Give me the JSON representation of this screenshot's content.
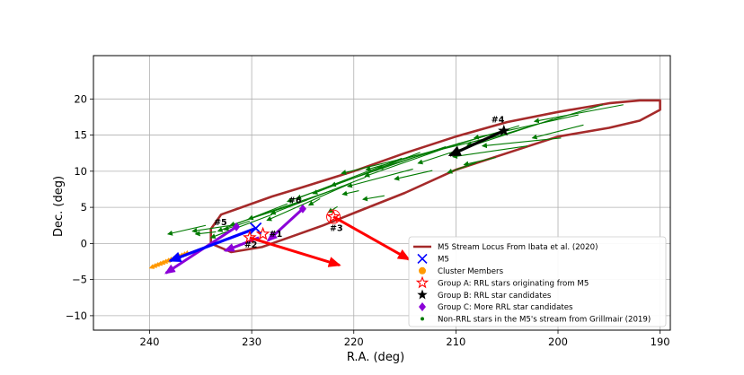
{
  "chart_data": {
    "type": "scatter",
    "xlabel": "R.A. (deg)",
    "ylabel": "Dec. (deg)",
    "xlim": [
      245.5,
      189
    ],
    "ylim": [
      -12,
      26
    ],
    "x_ticks": [
      240,
      230,
      220,
      210,
      200,
      190
    ],
    "y_ticks": [
      -10,
      -5,
      0,
      5,
      10,
      15,
      20
    ],
    "grid": true,
    "legend_position": "lower-right",
    "legend": [
      {
        "label": "M5 Stream Locus From Ibata et al. (2020)",
        "marker": "line",
        "color": "#a52a2a"
      },
      {
        "label": "M5",
        "marker": "x",
        "color": "#0000ff"
      },
      {
        "label": "Cluster Members",
        "marker": "circle",
        "color": "#ff9900"
      },
      {
        "label": "Group A: RRL stars originating from M5",
        "marker": "star-open",
        "color": "#ff0000"
      },
      {
        "label": "Group B: RRL star candidates",
        "marker": "star",
        "color": "#000000"
      },
      {
        "label": "Group C: More RRL star candidates",
        "marker": "diamond",
        "color": "#8b00d8"
      },
      {
        "label": "Non-RRL stars in the M5's stream from Grillmair (2019)",
        "marker": "dot",
        "color": "#007a00"
      }
    ],
    "locus_polygon": [
      [
        234,
        2
      ],
      [
        233,
        4
      ],
      [
        231,
        5
      ],
      [
        228,
        6.5
      ],
      [
        225,
        7.8
      ],
      [
        220,
        10
      ],
      [
        215,
        12.5
      ],
      [
        210,
        14.8
      ],
      [
        205,
        16.8
      ],
      [
        200,
        18.2
      ],
      [
        195,
        19.4
      ],
      [
        192,
        19.8
      ],
      [
        190,
        19.8
      ],
      [
        190,
        18.5
      ],
      [
        192,
        17
      ],
      [
        195,
        16
      ],
      [
        200,
        14.8
      ],
      [
        205,
        12.5
      ],
      [
        210,
        10.2
      ],
      [
        215,
        7
      ],
      [
        220,
        4.2
      ],
      [
        223,
        2.5
      ],
      [
        226,
        1
      ],
      [
        229,
        -0.5
      ],
      [
        232,
        -1.2
      ],
      [
        234,
        0
      ]
    ],
    "m5": {
      "x": 229.6,
      "y": 2.1
    },
    "cluster_members_fan": {
      "origin": [
        229.6,
        2.1
      ],
      "x_range": [
        236.6,
        240
      ],
      "y_range": [
        -1.5,
        -3.4
      ],
      "count": 14
    },
    "group_a": [
      {
        "label": "#1",
        "x": 228.9,
        "y": 1.3,
        "dx": 0,
        "dy": 0
      },
      {
        "label": "#2",
        "x": 230.2,
        "y": 0.8,
        "dx": -8.8,
        "dy": -3.8
      },
      {
        "label": "#3",
        "x": 222,
        "y": 3.7,
        "dx": -7.4,
        "dy": -5.9
      }
    ],
    "group_b": [
      {
        "label": "#4",
        "x": 205.3,
        "y": 15.6,
        "dx": 5.3,
        "dy": -3.4
      }
    ],
    "group_c": [
      {
        "label": "#5",
        "x": 231.5,
        "y": 2.3,
        "dx": 6.9,
        "dy": -6.4
      },
      {
        "label": "#6",
        "x": 225,
        "y": 4.8,
        "dx": 3.4,
        "dy": -4.4
      }
    ],
    "group_c_extra_arrow": {
      "x": 229.3,
      "y": 0.8,
      "dx": 3.3,
      "dy": -1.8
    },
    "m5_arrow": {
      "x": 229.6,
      "y": 2.1,
      "dx": 8.4,
      "dy": -4.5
    },
    "non_rrl_vectors": [
      {
        "x": 232,
        "y": 2.5,
        "dx": 3.8,
        "dy": -0.8
      },
      {
        "x": 230.2,
        "y": 3.1,
        "dx": 2.5,
        "dy": -1.2
      },
      {
        "x": 228,
        "y": 4,
        "dx": 6,
        "dy": -3.2
      },
      {
        "x": 226.5,
        "y": 5.5,
        "dx": 6.8,
        "dy": -3.8
      },
      {
        "x": 224.6,
        "y": 6,
        "dx": 7.5,
        "dy": -3.5
      },
      {
        "x": 222,
        "y": 7.4,
        "dx": 8.3,
        "dy": -4
      },
      {
        "x": 220.5,
        "y": 8.2,
        "dx": 8,
        "dy": -5
      },
      {
        "x": 218.8,
        "y": 9.2,
        "dx": 9.3,
        "dy": -5.1
      },
      {
        "x": 217,
        "y": 10.6,
        "dx": 9.5,
        "dy": -4.8
      },
      {
        "x": 215.3,
        "y": 11.8,
        "dx": 10.3,
        "dy": -5.6
      },
      {
        "x": 213.5,
        "y": 12.6,
        "dx": 10.5,
        "dy": -5.7
      },
      {
        "x": 211,
        "y": 13.4,
        "dx": 11.2,
        "dy": -5.4
      },
      {
        "x": 209.6,
        "y": 13.9,
        "dx": 9.3,
        "dy": -4.6
      },
      {
        "x": 207.4,
        "y": 14.4,
        "dx": 13.8,
        "dy": -4.7
      },
      {
        "x": 205.3,
        "y": 15.6,
        "dx": 13.5,
        "dy": -5.4
      },
      {
        "x": 203.8,
        "y": 16.3,
        "dx": 13.8,
        "dy": -5.9
      },
      {
        "x": 200.5,
        "y": 17.2,
        "dx": 13.2,
        "dy": -6.1
      },
      {
        "x": 198,
        "y": 17.8,
        "dx": 10.2,
        "dy": -3.2
      },
      {
        "x": 195.6,
        "y": 19.2,
        "dx": 13.3,
        "dy": -5.6
      },
      {
        "x": 193.6,
        "y": 19.2,
        "dx": 8.7,
        "dy": -2.3
      },
      {
        "x": 203,
        "y": 13.5,
        "dx": 7.3,
        "dy": -1.5
      },
      {
        "x": 199.7,
        "y": 14.6,
        "dx": 7.7,
        "dy": -1.1
      },
      {
        "x": 197.5,
        "y": 16.4,
        "dx": 5,
        "dy": -1.8
      },
      {
        "x": 212.3,
        "y": 10.1,
        "dx": 3.7,
        "dy": -1.2
      },
      {
        "x": 214.2,
        "y": 10.3,
        "dx": 6.4,
        "dy": -2.4
      },
      {
        "x": 219.5,
        "y": 7.3,
        "dx": 1.6,
        "dy": -0.5
      },
      {
        "x": 217,
        "y": 6.6,
        "dx": 2.1,
        "dy": -0.5
      },
      {
        "x": 223.3,
        "y": 6.2,
        "dx": 1.1,
        "dy": -0.9
      },
      {
        "x": 234.5,
        "y": 2.5,
        "dx": 3.7,
        "dy": -1.2
      },
      {
        "x": 233.5,
        "y": 1.6,
        "dx": 2,
        "dy": -0.3
      },
      {
        "x": 208,
        "y": 11.2,
        "dx": 2.8,
        "dy": -1.4
      },
      {
        "x": 206.1,
        "y": 11.9,
        "dx": 3.1,
        "dy": -1
      },
      {
        "x": 221.6,
        "y": 5.1,
        "dx": 0.9,
        "dy": -0.8
      }
    ]
  }
}
